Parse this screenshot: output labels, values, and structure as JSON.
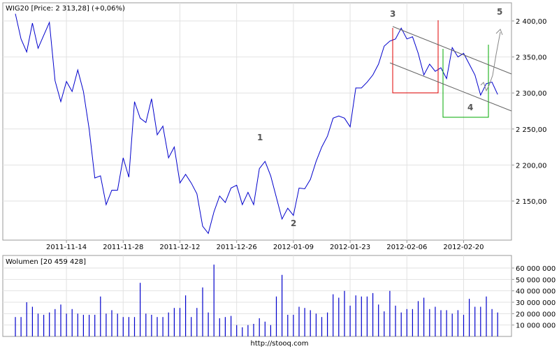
{
  "chart_data": [
    {
      "type": "line",
      "title": "WIG20 [Price: 2 313,28] (+0,06%)",
      "xlabel": "",
      "ylabel": "",
      "x_ticks": [
        "2011-11-14",
        "2011-11-28",
        "2011-12-12",
        "2011-12-26",
        "2012-01-09",
        "2012-01-23",
        "2012-02-06",
        "2012-02-20"
      ],
      "y_ticks": [
        "2 150,00",
        "2 200,00",
        "2 250,00",
        "2 300,00",
        "2 350,00",
        "2 400,00"
      ],
      "ylim": [
        2100,
        2420
      ],
      "grid": true,
      "series": [
        {
          "values": [
            2410,
            2375,
            2357,
            2397,
            2362,
            2380,
            2398,
            2317,
            2288,
            2316,
            2302,
            2332,
            2302,
            2250,
            2182,
            2185,
            2145,
            2165,
            2165,
            2210,
            2183,
            2288,
            2265,
            2259,
            2292,
            2242,
            2254,
            2210,
            2225,
            2175,
            2187,
            2175,
            2160,
            2115,
            2105,
            2135,
            2157,
            2148,
            2168,
            2172,
            2145,
            2162,
            2145,
            2195,
            2205,
            2185,
            2155,
            2125,
            2140,
            2130,
            2168,
            2167,
            2180,
            2205,
            2225,
            2240,
            2265,
            2268,
            2265,
            2253,
            2307,
            2307,
            2315,
            2325,
            2340,
            2365,
            2372,
            2375,
            2390,
            2375,
            2378,
            2355,
            2325,
            2340,
            2330,
            2335,
            2320,
            2363,
            2350,
            2355,
            2340,
            2325,
            2297,
            2313,
            2315,
            2298
          ]
        }
      ],
      "annotations": {
        "wave_labels": [
          "1",
          "2",
          "3",
          "4",
          "5"
        ]
      }
    },
    {
      "type": "bar",
      "title": "Wolumen [20 459 428]",
      "xlabel": "",
      "ylabel": "",
      "y_ticks": [
        "10 000 000",
        "20 000 000",
        "30 000 000",
        "40 000 000",
        "50 000 000",
        "60 000 000"
      ],
      "ylim": [
        0,
        66000000
      ],
      "grid": true,
      "values": [
        17000000,
        17000000,
        30000000,
        26000000,
        20000000,
        19000000,
        21000000,
        24000000,
        28000000,
        20000000,
        24000000,
        20000000,
        19000000,
        19000000,
        19000000,
        35000000,
        20000000,
        23000000,
        20000000,
        17000000,
        17000000,
        17000000,
        47000000,
        20000000,
        19000000,
        17000000,
        17000000,
        21000000,
        25000000,
        25000000,
        36000000,
        17000000,
        25000000,
        43000000,
        21000000,
        63000000,
        16000000,
        17000000,
        18000000,
        10000000,
        8000000,
        10000000,
        11000000,
        16000000,
        13000000,
        10000000,
        35000000,
        54000000,
        19000000,
        19000000,
        26000000,
        25000000,
        23000000,
        20000000,
        17000000,
        21000000,
        37000000,
        34000000,
        40000000,
        27000000,
        36000000,
        35000000,
        35000000,
        38000000,
        28000000,
        22000000,
        40000000,
        27000000,
        21000000,
        24000000,
        24000000,
        31000000,
        34000000,
        24000000,
        26000000,
        23000000,
        23000000,
        20000000,
        23000000,
        19000000,
        33000000,
        26000000,
        26000000,
        35000000,
        24000000,
        21000000
      ]
    }
  ],
  "footer": {
    "source": "http://stooq.com"
  }
}
